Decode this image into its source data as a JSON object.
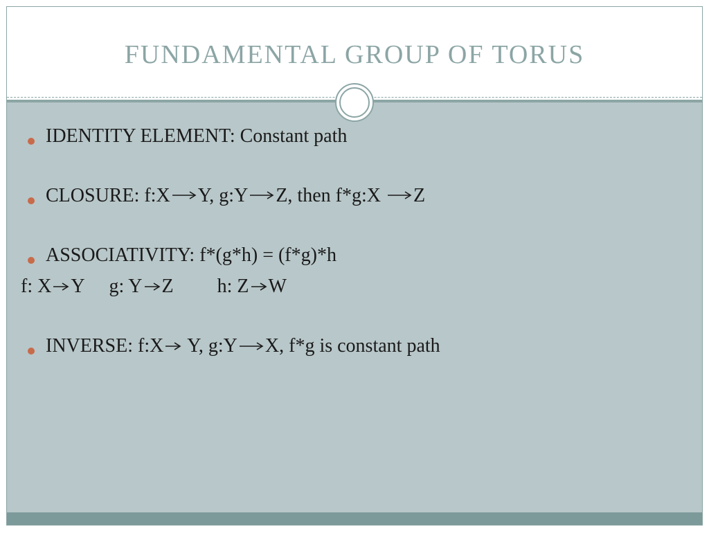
{
  "title": "FUNDAMENTAL GROUP OF TORUS",
  "colors": {
    "accent": "#8ca5a5",
    "body_bg": "#b8c7c9",
    "bullet": "#c86b4a",
    "text": "#1a1a1a",
    "footer": "#7d9a9a",
    "border": "#8ca5a5"
  },
  "typography": {
    "title_fontsize": 38,
    "body_fontsize": 28,
    "font_family": "Georgia serif"
  },
  "arrow": {
    "long_width": 36,
    "short_width": 24,
    "stroke": "#1a1a1a",
    "stroke_width": 1.6
  },
  "bullets": [
    {
      "label": "IDENTITY ELEMENT:",
      "rest": " Constant path"
    },
    {
      "label": "CLOSURE:",
      "parts": [
        "  f:X",
        "Y, g:Y",
        "Z, then f*g:X ",
        "Z"
      ],
      "arrow": "long"
    },
    {
      "label": "ASSOCIATIVITY:",
      "rest": "  f*(g*h) = (f*g)*h",
      "sub": {
        "parts": [
          "f: X",
          "Y     g: Y",
          "Z         h: Z",
          "W"
        ],
        "arrow": "short"
      }
    },
    {
      "label": "INVERSE:",
      "parts": [
        " f:X",
        " Y, g:Y",
        "X, f*g is constant path"
      ],
      "arrow": "short_then_long"
    }
  ]
}
